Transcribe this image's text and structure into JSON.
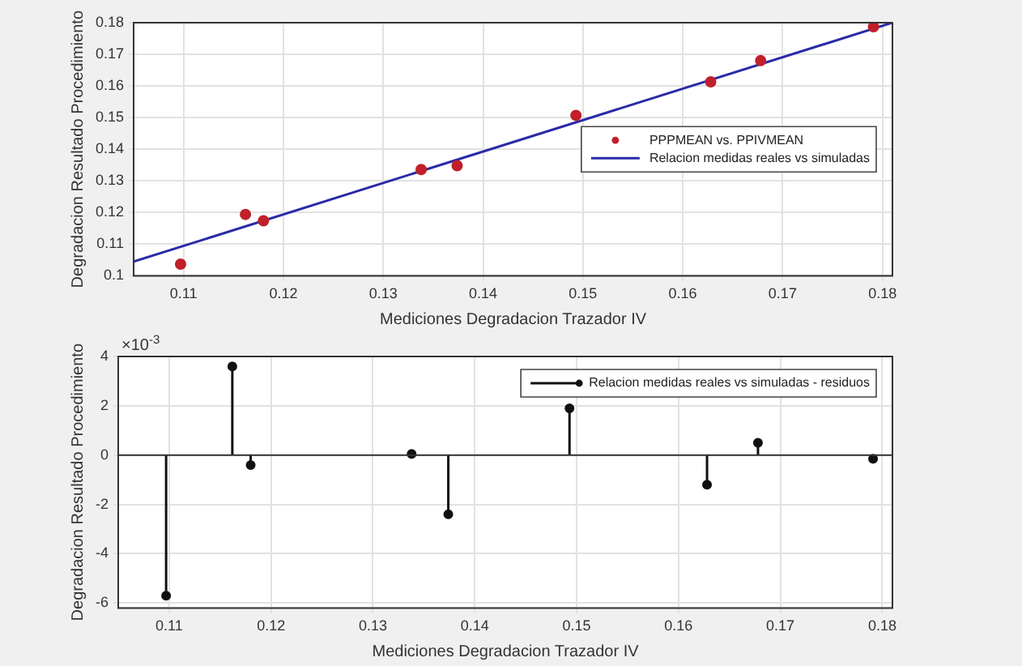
{
  "chart_data": [
    {
      "type": "scatter",
      "xlabel": "Mediciones Degradacion Trazador IV",
      "ylabel": "Degradacion Resultado Procedimiento",
      "xlim": [
        0.105,
        0.181
      ],
      "xticks": [
        0.11,
        0.12,
        0.13,
        0.14,
        0.15,
        0.16,
        0.17,
        0.18
      ],
      "ylim": [
        0.1,
        0.18
      ],
      "yticks": [
        0.1,
        0.11,
        0.12,
        0.13,
        0.14,
        0.15,
        0.16,
        0.17,
        0.18
      ],
      "grid": true,
      "legend": "right",
      "series": [
        {
          "name": "PPPMEAN vs. PPIVMEAN",
          "color": "#c0202a",
          "x": [
            0.1097,
            0.1162,
            0.118,
            0.1338,
            0.1374,
            0.1493,
            0.1628,
            0.1678,
            0.1791
          ],
          "values": [
            0.1037,
            0.1194,
            0.1174,
            0.1336,
            0.1348,
            0.1507,
            0.1613,
            0.168,
            0.1787
          ]
        },
        {
          "name": "Relacion medidas reales vs simuladas",
          "type": "line",
          "color": "#2a2aa8",
          "x": [
            0.105,
            0.181
          ],
          "values": [
            0.1045,
            0.18
          ]
        }
      ]
    },
    {
      "type": "lollipop",
      "xlabel": "Mediciones Degradacion Trazador IV",
      "ylabel": "Degradacion Resultado Procedimiento",
      "annotations": [
        "×10$^{-3}$"
      ],
      "xlim": [
        0.105,
        0.181
      ],
      "xticks": [
        0.11,
        0.12,
        0.13,
        0.14,
        0.15,
        0.16,
        0.17,
        0.18
      ],
      "ylim": [
        -6.2,
        4
      ],
      "yticks": [
        -6,
        -4,
        -2,
        0,
        2,
        4
      ],
      "grid": true,
      "legend": "top right",
      "marker": "circle",
      "series": [
        {
          "name": "Relacion medidas reales vs simuladas - residuos",
          "color": "#111111",
          "x": [
            0.1097,
            0.1162,
            0.118,
            0.1338,
            0.1374,
            0.1493,
            0.1628,
            0.1678,
            0.1791
          ],
          "values": [
            -5.7,
            3.6,
            -0.4,
            0.05,
            -2.4,
            1.9,
            -1.2,
            0.5,
            -0.15
          ]
        }
      ]
    }
  ]
}
